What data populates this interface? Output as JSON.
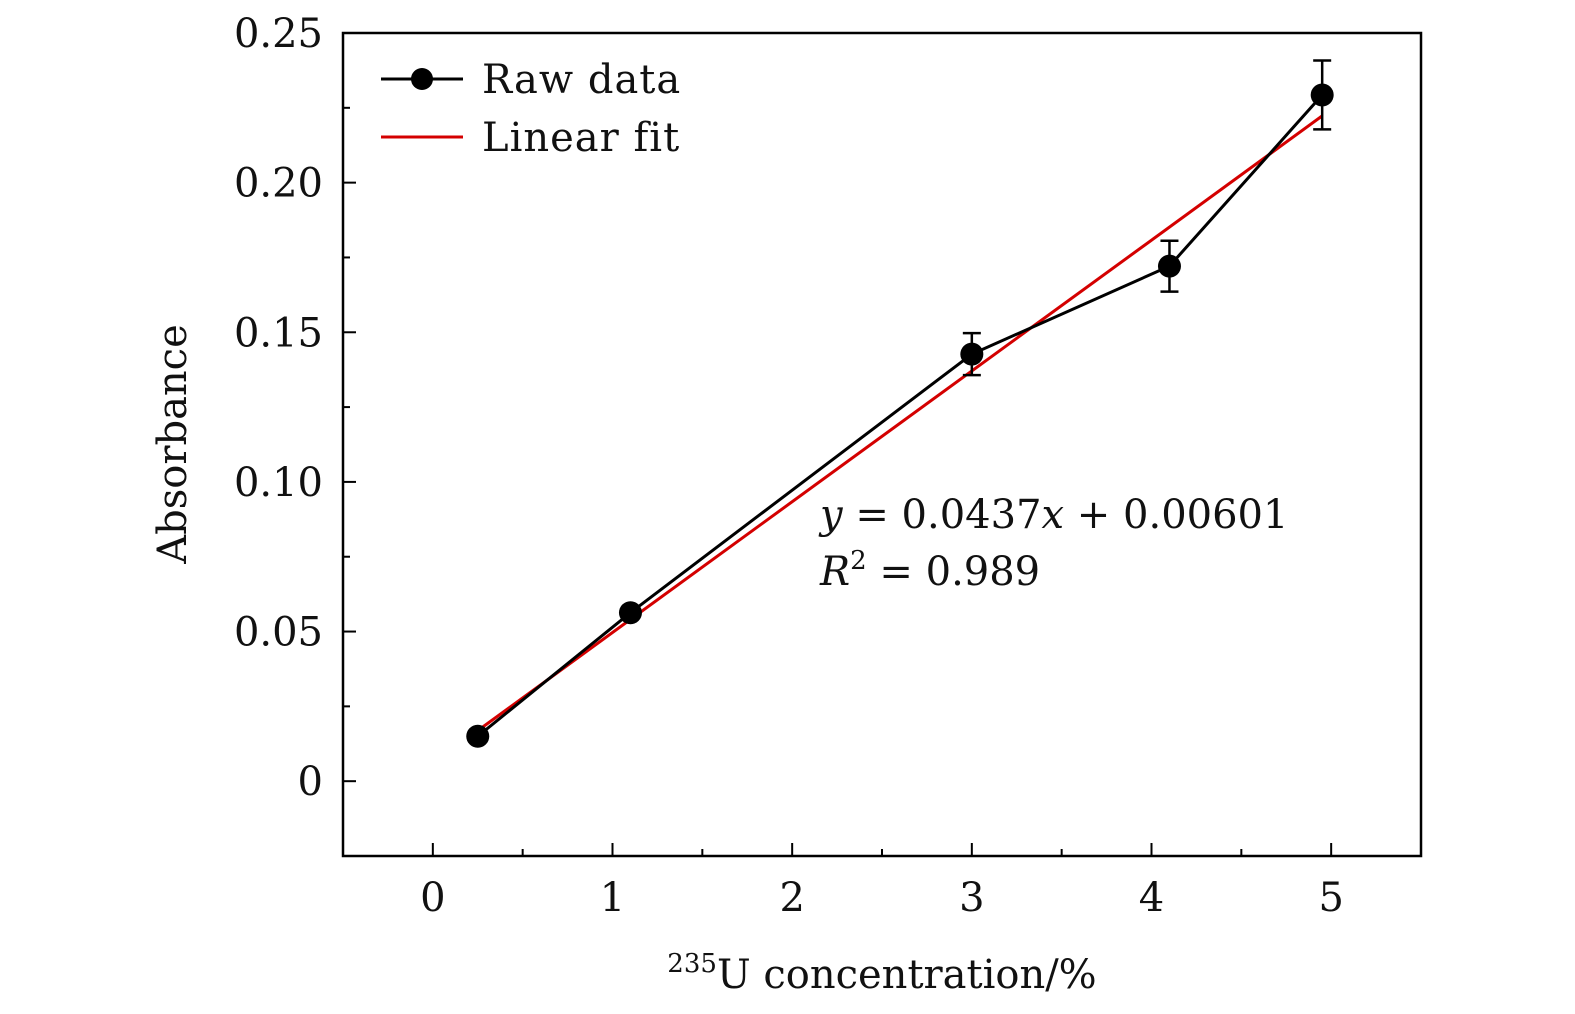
{
  "chart_data": {
    "type": "line",
    "title": "",
    "xlabel_superscript": "235",
    "xlabel": "U concentration/%",
    "ylabel": "Absorbance",
    "xlim": [
      -0.5,
      5.5
    ],
    "ylim": [
      -0.025,
      0.25
    ],
    "x_ticks": [
      0,
      1,
      2,
      3,
      4,
      5
    ],
    "x_tick_labels": [
      "0",
      "1",
      "2",
      "3",
      "4",
      "5"
    ],
    "x_minor_ticks": [
      0.5,
      1.5,
      2.5,
      3.5,
      4.5
    ],
    "y_ticks": [
      0,
      0.05,
      0.1,
      0.15,
      0.2,
      0.25
    ],
    "y_tick_labels": [
      "0",
      "0.05",
      "0.10",
      "0.15",
      "0.20",
      "0.25"
    ],
    "y_minor_ticks": [
      -0.025,
      0.025,
      0.075,
      0.125,
      0.175,
      0.225
    ],
    "grid": false,
    "legend_position": "top-left",
    "series": [
      {
        "name": "Raw data",
        "color": "#000000",
        "marker": "circle",
        "x": [
          0.25,
          1.1,
          3.0,
          4.1,
          4.95
        ],
        "y": [
          0.015,
          0.0563,
          0.1427,
          0.1721,
          0.2293
        ],
        "error": [
          0.001,
          0.0015,
          0.007,
          0.0085,
          0.0115
        ]
      },
      {
        "name": "Linear fit",
        "color": "#d40000",
        "marker": "none",
        "x": [
          0.25,
          4.95
        ],
        "y": [
          0.0169,
          0.2223
        ]
      }
    ],
    "annotations": {
      "equation_y": "y",
      "equation_eq": " = 0.0437",
      "equation_x": "x",
      "equation_rest": " + 0.00601",
      "r2_letter": "R",
      "r2_sup": "2",
      "r2_rest": " = 0.989"
    }
  }
}
